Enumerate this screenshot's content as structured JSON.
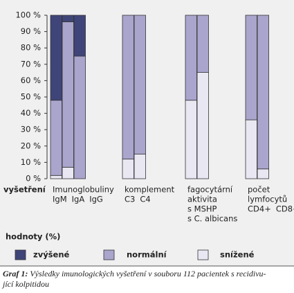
{
  "chart_data": {
    "type": "stacked_bar",
    "x_label": "vyšetření",
    "groups": [
      {
        "title": [
          "Imunoglobuliny"
        ],
        "categories": [
          "IgM",
          "IgA",
          "IgG"
        ]
      },
      {
        "title": [
          "komplement"
        ],
        "categories": [
          "C3",
          "C4"
        ]
      },
      {
        "title": [
          "fagocytární",
          "aktivita"
        ],
        "categories": [
          "s MSHP",
          "s C. albicans"
        ]
      },
      {
        "title": [
          "počet",
          "lymfocytů"
        ],
        "categories": [
          "CD4+",
          "CD8+"
        ]
      }
    ],
    "series": [
      {
        "name": "zvýšené",
        "color": "#3f4579",
        "values": [
          52,
          4,
          25,
          0,
          0,
          0,
          0,
          0,
          0
        ]
      },
      {
        "name": "normální",
        "color": "#a9a5cc",
        "values": [
          46,
          89,
          75,
          88,
          85,
          52,
          35,
          64,
          94
        ]
      },
      {
        "name": "snížené",
        "color": "#e9e7f2",
        "values": [
          2,
          7,
          0,
          12,
          15,
          48,
          65,
          36,
          6
        ]
      }
    ],
    "ylim": [
      0,
      100
    ],
    "yticks": [
      {
        "value": 0,
        "label": "0 %"
      },
      {
        "value": 10,
        "label": "10 %"
      },
      {
        "value": 20,
        "label": "20 %"
      },
      {
        "value": 30,
        "label": "30 %"
      },
      {
        "value": 40,
        "label": "40 %"
      },
      {
        "value": 50,
        "label": "50 %"
      },
      {
        "value": 60,
        "label": "60 %"
      },
      {
        "value": 70,
        "label": "70 %"
      },
      {
        "value": 80,
        "label": "80 %"
      },
      {
        "value": 90,
        "label": "90 %"
      },
      {
        "value": 100,
        "label": "100 %"
      }
    ],
    "legend_title": "hodnoty (%)",
    "caption": {
      "label": "Graf 1:",
      "lines": [
        "Výsledky imunologických vyšetření v souboru 112 pacientek s recidivu-",
        "jící kolpitidou"
      ]
    }
  }
}
